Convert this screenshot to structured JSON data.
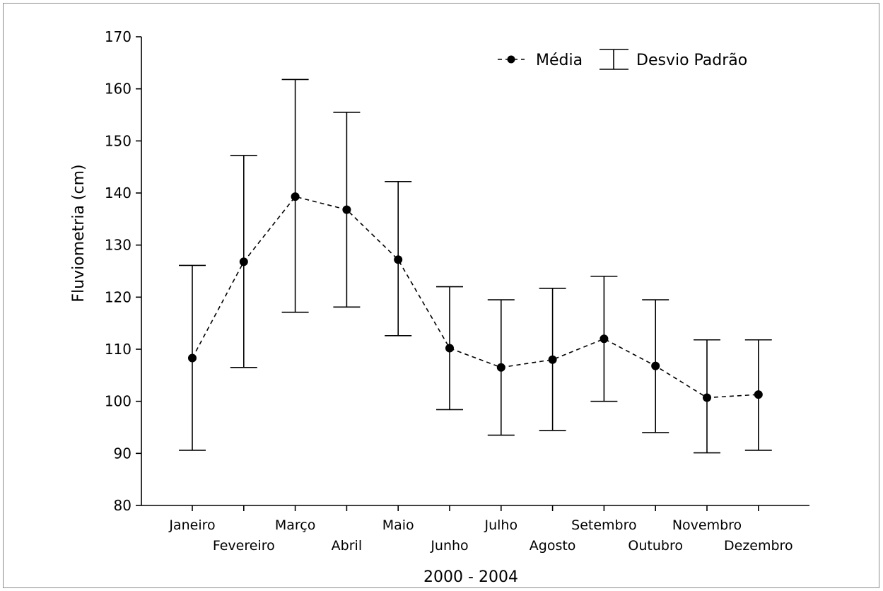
{
  "chart_data": {
    "type": "line",
    "title": "",
    "xlabel": "2000 - 2004",
    "ylabel": "Fluviometria (cm)",
    "ylim": [
      80,
      170
    ],
    "yticks": [
      80,
      90,
      100,
      110,
      120,
      130,
      140,
      150,
      160,
      170
    ],
    "categories": [
      "Janeiro",
      "Fevereiro",
      "Março",
      "Abril",
      "Maio",
      "Junho",
      "Julho",
      "Agosto",
      "Setembro",
      "Outubro",
      "Novembro",
      "Dezembro"
    ],
    "series": [
      {
        "name": "Média",
        "values": [
          108.3,
          126.8,
          139.3,
          136.8,
          127.2,
          110.2,
          106.5,
          108.0,
          112.0,
          106.8,
          100.7,
          101.3
        ]
      }
    ],
    "error_bars": {
      "name": "Desvio Padrão",
      "low": [
        90.6,
        106.5,
        117.1,
        118.1,
        112.6,
        98.4,
        93.5,
        94.4,
        100.0,
        94.0,
        90.1,
        90.6
      ],
      "high": [
        126.1,
        147.2,
        161.8,
        155.5,
        142.2,
        122.0,
        119.5,
        121.7,
        124.0,
        119.5,
        111.8,
        111.8
      ]
    },
    "grid": false,
    "legend_position": "top-right",
    "line_style": "dashed",
    "colors": {
      "line": "#000000",
      "marker": "#000000",
      "error": "#000000"
    }
  }
}
